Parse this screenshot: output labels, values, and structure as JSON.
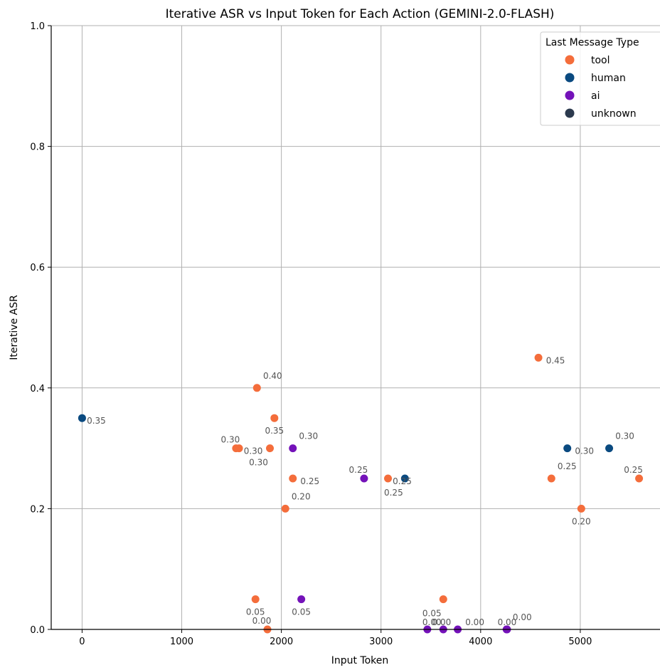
{
  "chart_data": {
    "type": "scatter",
    "title": "Iterative ASR vs Input Token for Each Action (GEMINI-2.0-FLASH)",
    "xlabel": "Input Token",
    "ylabel": "Iterative ASR",
    "xlim": [
      -310,
      5800
    ],
    "ylim": [
      0,
      1.0
    ],
    "xticks": [
      "0",
      "1000",
      "2000",
      "3000",
      "4000",
      "5000"
    ],
    "yticks": [
      "0.0",
      "0.2",
      "0.4",
      "0.6",
      "0.8",
      "1.0"
    ],
    "grid": true,
    "legend": {
      "title": "Last Message Type",
      "placement": "top-right",
      "entries": [
        {
          "name": "tool",
          "color": "#f46d3b"
        },
        {
          "name": "human",
          "color": "#0a4a80"
        },
        {
          "name": "ai",
          "color": "#7412b9"
        },
        {
          "name": "unknown",
          "color": "#2c3a4e"
        }
      ]
    },
    "series": [
      {
        "name": "tool",
        "color": "#f46d3b",
        "points": [
          {
            "x": 1755,
            "y": 0.4,
            "label": "0.40"
          },
          {
            "x": 1930,
            "y": 0.35,
            "label": "0.35"
          },
          {
            "x": 1545,
            "y": 0.3,
            "label": "0.30"
          },
          {
            "x": 1575,
            "y": 0.3,
            "label": "0.30"
          },
          {
            "x": 1885,
            "y": 0.3,
            "label": "0.30"
          },
          {
            "x": 2115,
            "y": 0.25,
            "label": "0.25"
          },
          {
            "x": 2040,
            "y": 0.2,
            "label": "0.20"
          },
          {
            "x": 1740,
            "y": 0.05,
            "label": "0.05"
          },
          {
            "x": 1860,
            "y": 0.0,
            "label": "0.00"
          },
          {
            "x": 3070,
            "y": 0.25,
            "label": "0.25"
          },
          {
            "x": 3625,
            "y": 0.05,
            "label": "0.05"
          },
          {
            "x": 4580,
            "y": 0.45,
            "label": "0.45"
          },
          {
            "x": 4710,
            "y": 0.25,
            "label": "0.25"
          },
          {
            "x": 5010,
            "y": 0.2,
            "label": "0.20"
          },
          {
            "x": 5590,
            "y": 0.25,
            "label": "0.25"
          }
        ]
      },
      {
        "name": "human",
        "color": "#0a4a80",
        "points": [
          {
            "x": 0,
            "y": 0.35,
            "label": "0.35"
          },
          {
            "x": 3240,
            "y": 0.25,
            "label": "0.25"
          },
          {
            "x": 4870,
            "y": 0.3,
            "label": "0.30"
          },
          {
            "x": 5290,
            "y": 0.3,
            "label": "0.30"
          }
        ]
      },
      {
        "name": "ai",
        "color": "#7412b9",
        "points": [
          {
            "x": 2115,
            "y": 0.3,
            "label": "0.30"
          },
          {
            "x": 2200,
            "y": 0.05,
            "label": "0.05"
          },
          {
            "x": 2830,
            "y": 0.25,
            "label": "0.25"
          },
          {
            "x": 3465,
            "y": 0.0,
            "label": "0.00"
          },
          {
            "x": 3625,
            "y": 0.0,
            "label": "0.00"
          },
          {
            "x": 3770,
            "y": 0.0,
            "label": "0.00"
          },
          {
            "x": 4260,
            "y": 0.0,
            "label": "0.00"
          },
          {
            "x": 4265,
            "y": 0.0,
            "label": "0.00"
          }
        ]
      }
    ]
  }
}
